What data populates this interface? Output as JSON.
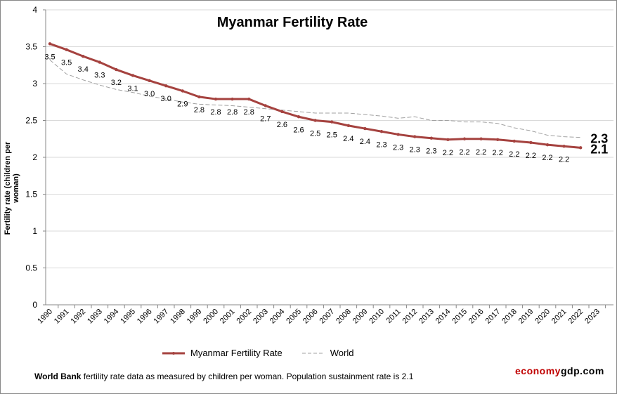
{
  "chart_data": {
    "type": "line",
    "title": "Myanmar Fertility Rate",
    "xlabel": "",
    "ylabel": "Fertility rate (children per woman)",
    "ylim": [
      0,
      4
    ],
    "yticks": [
      "0",
      "0.5",
      "1",
      "1.5",
      "2",
      "2.5",
      "3",
      "3.5",
      "4"
    ],
    "grid": true,
    "legend_position": "bottom",
    "x": [
      "1990",
      "1991",
      "1992",
      "1993",
      "1994",
      "1995",
      "1996",
      "1997",
      "1998",
      "1999",
      "2000",
      "2001",
      "2002",
      "2003",
      "2004",
      "2005",
      "2006",
      "2007",
      "2008",
      "2009",
      "2010",
      "2011",
      "2012",
      "2013",
      "2014",
      "2015",
      "2016",
      "2017",
      "2018",
      "2019",
      "2020",
      "2021",
      "2022",
      "2023"
    ],
    "series": [
      {
        "name": "Myanmar Fertility Rate",
        "color": "#a5423f",
        "values": [
          3.54,
          3.46,
          3.37,
          3.29,
          3.19,
          3.11,
          3.04,
          2.97,
          2.9,
          2.82,
          2.79,
          2.79,
          2.79,
          2.7,
          2.62,
          2.55,
          2.5,
          2.48,
          2.43,
          2.39,
          2.35,
          2.31,
          2.28,
          2.26,
          2.24,
          2.25,
          2.25,
          2.24,
          2.22,
          2.2,
          2.17,
          2.15,
          2.13,
          null
        ],
        "labels": [
          "3.5",
          "3.5",
          "3.4",
          "3.3",
          "3.2",
          "3.1",
          "3.0",
          "3.0",
          "2.9",
          "2.8",
          "2.8",
          "2.8",
          "2.8",
          "2.7",
          "2.6",
          "2.6",
          "2.5",
          "2.5",
          "2.4",
          "2.4",
          "2.3",
          "2.3",
          "2.3",
          "2.3",
          "2.2",
          "2.2",
          "2.2",
          "2.2",
          "2.2",
          "2.2",
          "2.2",
          "2.2",
          "2.1",
          ""
        ]
      },
      {
        "name": "World",
        "color": "#a0a0a0",
        "values": [
          3.32,
          3.13,
          3.05,
          2.98,
          2.92,
          2.88,
          2.83,
          2.79,
          2.75,
          2.72,
          2.71,
          2.7,
          2.68,
          2.66,
          2.64,
          2.62,
          2.6,
          2.6,
          2.6,
          2.58,
          2.56,
          2.53,
          2.55,
          2.5,
          2.5,
          2.48,
          2.48,
          2.46,
          2.4,
          2.36,
          2.3,
          2.28,
          2.27,
          null
        ],
        "end_label": "2.3"
      }
    ]
  },
  "footnote": {
    "bold": "World Bank",
    "text": " fertility rate data as measured by children per woman.  Population sustainment rate is 2.1"
  },
  "brand": {
    "part1": "economy",
    "part2": "gdp.com",
    "color1": "#c00000",
    "color2": "#000000"
  }
}
